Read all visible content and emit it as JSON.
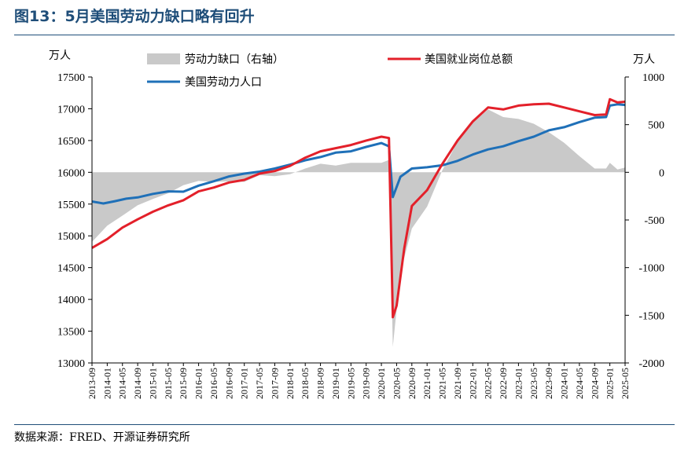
{
  "figure": {
    "title": "图13：5月美国劳动力缺口略有回升",
    "source": "数据来源：FRED、开源证券研究所"
  },
  "chart_data": {
    "type": "line",
    "left_axis_unit": "万人",
    "right_axis_unit": "万人",
    "left_ylim": [
      13000,
      17500
    ],
    "left_ticks": [
      13000,
      13500,
      14000,
      14500,
      15000,
      15500,
      16000,
      16500,
      17000,
      17500
    ],
    "right_ylim": [
      -2000,
      1000
    ],
    "right_ticks": [
      -2000,
      -1500,
      -1000,
      -500,
      0,
      500,
      1000
    ],
    "x_tick_labels": [
      "2013-09",
      "2014-01",
      "2014-05",
      "2014-09",
      "2015-01",
      "2015-05",
      "2015-09",
      "2016-01",
      "2016-05",
      "2016-09",
      "2017-01",
      "2017-05",
      "2017-09",
      "2018-01",
      "2018-05",
      "2018-09",
      "2019-01",
      "2019-05",
      "2019-09",
      "2020-01",
      "2020-05",
      "2020-09",
      "2021-01",
      "2021-05",
      "2021-09",
      "2022-01",
      "2022-05",
      "2022-09",
      "2023-01",
      "2023-05",
      "2023-09",
      "2024-01",
      "2024-05",
      "2024-09",
      "2025-01",
      "2025-05"
    ],
    "legend": {
      "gap": "劳动力缺口（右轴）",
      "jobs": "美国就业岗位总额",
      "labor": "美国劳动力人口"
    },
    "colors": {
      "gap": "#c9c9c9",
      "jobs": "#e3202a",
      "labor": "#1f70b8"
    },
    "x_start": "2013-09",
    "x_end": "2025-05",
    "series": [
      {
        "name": "美国劳动力人口",
        "axis": "left",
        "points": [
          [
            "2013-09",
            15540
          ],
          [
            "2013-12",
            15510
          ],
          [
            "2014-03",
            15545
          ],
          [
            "2014-06",
            15585
          ],
          [
            "2014-09",
            15605
          ],
          [
            "2015-01",
            15660
          ],
          [
            "2015-05",
            15700
          ],
          [
            "2015-09",
            15695
          ],
          [
            "2016-01",
            15790
          ],
          [
            "2016-05",
            15860
          ],
          [
            "2016-09",
            15935
          ],
          [
            "2017-01",
            15980
          ],
          [
            "2017-05",
            16010
          ],
          [
            "2017-09",
            16060
          ],
          [
            "2018-01",
            16120
          ],
          [
            "2018-05",
            16190
          ],
          [
            "2018-09",
            16240
          ],
          [
            "2019-01",
            16310
          ],
          [
            "2019-05",
            16330
          ],
          [
            "2019-09",
            16400
          ],
          [
            "2020-01",
            16460
          ],
          [
            "2020-03",
            16410
          ],
          [
            "2020-04",
            15610
          ],
          [
            "2020-06",
            15930
          ],
          [
            "2020-09",
            16060
          ],
          [
            "2021-01",
            16080
          ],
          [
            "2021-05",
            16110
          ],
          [
            "2021-09",
            16180
          ],
          [
            "2022-01",
            16280
          ],
          [
            "2022-05",
            16360
          ],
          [
            "2022-09",
            16410
          ],
          [
            "2023-01",
            16490
          ],
          [
            "2023-05",
            16560
          ],
          [
            "2023-09",
            16660
          ],
          [
            "2024-01",
            16710
          ],
          [
            "2024-05",
            16790
          ],
          [
            "2024-09",
            16860
          ],
          [
            "2024-12",
            16870
          ],
          [
            "2025-01",
            17050
          ],
          [
            "2025-03",
            17070
          ],
          [
            "2025-05",
            17060
          ]
        ]
      },
      {
        "name": "美国就业岗位总额",
        "axis": "left",
        "points": [
          [
            "2013-09",
            14810
          ],
          [
            "2014-01",
            14950
          ],
          [
            "2014-05",
            15130
          ],
          [
            "2014-09",
            15260
          ],
          [
            "2015-01",
            15380
          ],
          [
            "2015-05",
            15480
          ],
          [
            "2015-09",
            15560
          ],
          [
            "2016-01",
            15700
          ],
          [
            "2016-05",
            15760
          ],
          [
            "2016-09",
            15840
          ],
          [
            "2017-01",
            15880
          ],
          [
            "2017-05",
            15980
          ],
          [
            "2017-09",
            16020
          ],
          [
            "2018-01",
            16100
          ],
          [
            "2018-05",
            16230
          ],
          [
            "2018-09",
            16330
          ],
          [
            "2019-01",
            16380
          ],
          [
            "2019-05",
            16430
          ],
          [
            "2019-09",
            16500
          ],
          [
            "2020-01",
            16560
          ],
          [
            "2020-03",
            16540
          ],
          [
            "2020-04",
            13720
          ],
          [
            "2020-05",
            13900
          ],
          [
            "2020-07",
            14800
          ],
          [
            "2020-09",
            15470
          ],
          [
            "2021-01",
            15720
          ],
          [
            "2021-05",
            16130
          ],
          [
            "2021-09",
            16500
          ],
          [
            "2022-01",
            16800
          ],
          [
            "2022-05",
            17020
          ],
          [
            "2022-09",
            16990
          ],
          [
            "2023-01",
            17050
          ],
          [
            "2023-05",
            17070
          ],
          [
            "2023-09",
            17080
          ],
          [
            "2024-01",
            17020
          ],
          [
            "2024-05",
            16960
          ],
          [
            "2024-09",
            16900
          ],
          [
            "2024-12",
            16910
          ],
          [
            "2025-01",
            17150
          ],
          [
            "2025-03",
            17100
          ],
          [
            "2025-05",
            17110
          ]
        ]
      },
      {
        "name": "劳动力缺口（右轴）",
        "axis": "right",
        "points": [
          [
            "2013-09",
            -730
          ],
          [
            "2014-01",
            -560
          ],
          [
            "2014-05",
            -455
          ],
          [
            "2014-09",
            -345
          ],
          [
            "2015-01",
            -280
          ],
          [
            "2015-05",
            -220
          ],
          [
            "2015-09",
            -135
          ],
          [
            "2016-01",
            -90
          ],
          [
            "2016-05",
            -100
          ],
          [
            "2016-09",
            -95
          ],
          [
            "2017-01",
            -100
          ],
          [
            "2017-05",
            -30
          ],
          [
            "2017-09",
            -40
          ],
          [
            "2018-01",
            -20
          ],
          [
            "2018-05",
            40
          ],
          [
            "2018-09",
            90
          ],
          [
            "2019-01",
            70
          ],
          [
            "2019-05",
            100
          ],
          [
            "2019-09",
            100
          ],
          [
            "2020-01",
            100
          ],
          [
            "2020-03",
            130
          ],
          [
            "2020-04",
            -1830
          ],
          [
            "2020-06",
            -1050
          ],
          [
            "2020-09",
            -590
          ],
          [
            "2021-01",
            -360
          ],
          [
            "2021-05",
            20
          ],
          [
            "2021-09",
            320
          ],
          [
            "2022-01",
            520
          ],
          [
            "2022-05",
            660
          ],
          [
            "2022-09",
            580
          ],
          [
            "2023-01",
            560
          ],
          [
            "2023-05",
            510
          ],
          [
            "2023-09",
            420
          ],
          [
            "2024-01",
            310
          ],
          [
            "2024-05",
            170
          ],
          [
            "2024-09",
            40
          ],
          [
            "2024-12",
            40
          ],
          [
            "2025-01",
            100
          ],
          [
            "2025-03",
            30
          ],
          [
            "2025-05",
            50
          ]
        ]
      }
    ]
  }
}
